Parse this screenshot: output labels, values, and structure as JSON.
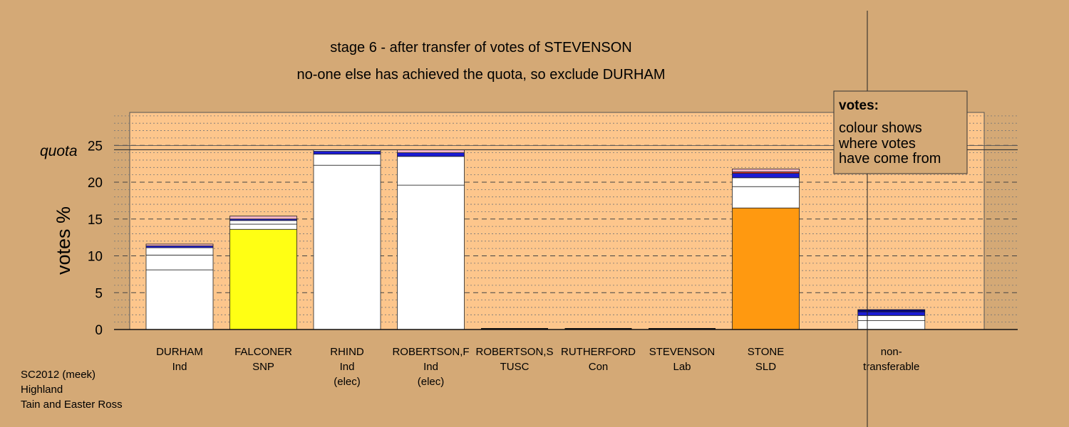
{
  "colors": {
    "background": "#d4a976",
    "plot_area": "#fdc68c",
    "bar_outline": "#222222",
    "segment_colors": {
      "white": "#ffffff",
      "snp_yellow": "#ffff14",
      "sld_orange": "#ff9910",
      "con_blue": "#1a1ad4",
      "lab_red": "#e03030",
      "pink": "#f4b4c4",
      "navy": "#000080"
    }
  },
  "chart_data": {
    "type": "bar",
    "stacked": true,
    "title": "stage 6 - after transfer of votes of STEVENSON",
    "subtitle": "no-one else has achieved the quota, so exclude DURHAM",
    "ylabel": "votes %",
    "xlabel": "",
    "ylim": [
      0,
      29
    ],
    "yticks": [
      0,
      5,
      10,
      15,
      20,
      25
    ],
    "quota": 24.4,
    "quota_label": "quota",
    "grid": true,
    "candidates": [
      {
        "name": "DURHAM",
        "party": "Ind",
        "note": "",
        "total": 11.6,
        "segments": [
          {
            "value": 8.1,
            "color": "white"
          },
          {
            "value": 2.0,
            "color": "white"
          },
          {
            "value": 1.0,
            "color": "white"
          },
          {
            "value": 0.25,
            "color": "con_blue"
          },
          {
            "value": 0.25,
            "color": "pink"
          }
        ]
      },
      {
        "name": "FALCONER",
        "party": "SNP",
        "note": "",
        "total": 15.4,
        "segments": [
          {
            "value": 13.6,
            "color": "snp_yellow"
          },
          {
            "value": 0.7,
            "color": "white"
          },
          {
            "value": 0.5,
            "color": "white"
          },
          {
            "value": 0.2,
            "color": "con_blue"
          },
          {
            "value": 0.4,
            "color": "pink"
          }
        ]
      },
      {
        "name": "RHIND",
        "party": "Ind",
        "note": "(elec)",
        "total": 24.4,
        "segments": [
          {
            "value": 22.3,
            "color": "white"
          },
          {
            "value": 1.5,
            "color": "white"
          },
          {
            "value": 0.4,
            "color": "con_blue"
          },
          {
            "value": 0.2,
            "color": "white"
          }
        ]
      },
      {
        "name": "ROBERTSON,F",
        "party": "Ind",
        "note": "(elec)",
        "total": 24.4,
        "segments": [
          {
            "value": 19.6,
            "color": "white"
          },
          {
            "value": 3.9,
            "color": "white"
          },
          {
            "value": 0.5,
            "color": "con_blue"
          },
          {
            "value": 0.4,
            "color": "pink"
          }
        ]
      },
      {
        "name": "ROBERTSON,S",
        "party": "TUSC",
        "note": "",
        "total": 0,
        "segments": []
      },
      {
        "name": "RUTHERFORD",
        "party": "Con",
        "note": "",
        "total": 0,
        "segments": []
      },
      {
        "name": "STEVENSON",
        "party": "Lab",
        "note": "",
        "total": 0,
        "segments": []
      },
      {
        "name": "STONE",
        "party": "SLD",
        "note": "",
        "total": 21.8,
        "segments": [
          {
            "value": 16.5,
            "color": "sld_orange"
          },
          {
            "value": 2.9,
            "color": "white"
          },
          {
            "value": 1.2,
            "color": "white"
          },
          {
            "value": 0.6,
            "color": "con_blue"
          },
          {
            "value": 0.2,
            "color": "lab_red"
          },
          {
            "value": 0.4,
            "color": "pink"
          }
        ]
      },
      {
        "name": "non-",
        "party": "transferable",
        "note": "",
        "total": 2.7,
        "segments": [
          {
            "value": 1.2,
            "color": "white"
          },
          {
            "value": 0.7,
            "color": "white"
          },
          {
            "value": 0.5,
            "color": "con_blue"
          },
          {
            "value": 0.3,
            "color": "navy"
          }
        ]
      }
    ],
    "legend": {
      "heading": "votes:",
      "lines": [
        "colour shows",
        "where votes",
        "have come from"
      ],
      "placement": "top-right"
    }
  },
  "footer": {
    "lines": [
      "SC2012 (meek)",
      "Highland",
      "Tain and Easter Ross"
    ]
  }
}
